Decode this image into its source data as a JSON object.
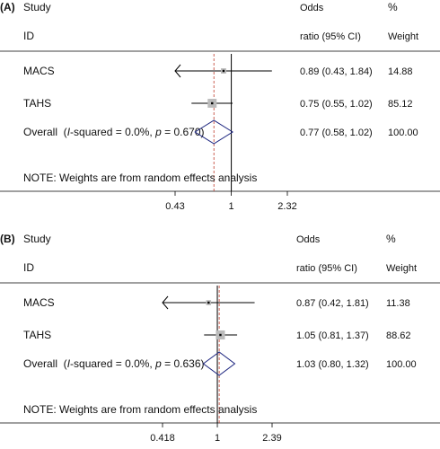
{
  "chart_data": [
    {
      "type": "forest",
      "panel_label": "(A)",
      "header": {
        "study": "Study",
        "id": "ID",
        "or_line1": "Odds",
        "or_line2": "ratio (95% CI)",
        "w_line1": "%",
        "w_line2": "Weight"
      },
      "studies": [
        {
          "name": "MACS",
          "or": 0.89,
          "lo": 0.43,
          "hi": 1.84,
          "ci_text": "0.89 (0.43, 1.84)",
          "weight": 14.88,
          "weight_text": "14.88",
          "lo_clipped": true
        },
        {
          "name": "TAHS",
          "or": 0.75,
          "lo": 0.55,
          "hi": 1.02,
          "ci_text": "0.75 (0.55, 1.02)",
          "weight": 85.12,
          "weight_text": "85.12",
          "lo_clipped": false
        }
      ],
      "overall": {
        "label_pre": "Overall  (",
        "label_i": "I",
        "label_mid": "-squared = 0.0%, ",
        "label_p": "p",
        "label_post": " = 0.670)",
        "or": 0.77,
        "lo": 0.58,
        "hi": 1.02,
        "ci_text": "0.77 (0.58, 1.02)",
        "weight_text": "100.00"
      },
      "note": "NOTE: Weights are from random effects analysis",
      "ticks": [
        {
          "value": 0.43,
          "label": "0.43"
        },
        {
          "value": 1,
          "label": "1"
        },
        {
          "value": 2.32,
          "label": "2.32"
        }
      ],
      "xlim": [
        0.43,
        2.32
      ],
      "log_scale": true
    },
    {
      "type": "forest",
      "panel_label": "(B)",
      "header": {
        "study": "Study",
        "id": "ID",
        "or_line1": "Odds",
        "or_line2": "ratio (95% CI)",
        "w_line1": "%",
        "w_line2": "Weight"
      },
      "studies": [
        {
          "name": "MACS",
          "or": 0.87,
          "lo": 0.42,
          "hi": 1.81,
          "ci_text": "0.87 (0.42, 1.81)",
          "weight": 11.38,
          "weight_text": "11.38",
          "lo_clipped": true
        },
        {
          "name": "TAHS",
          "or": 1.05,
          "lo": 0.81,
          "hi": 1.37,
          "ci_text": "1.05 (0.81, 1.37)",
          "weight": 88.62,
          "weight_text": "88.62",
          "lo_clipped": false
        }
      ],
      "overall": {
        "label_pre": "Overall  (",
        "label_i": "I",
        "label_mid": "-squared = 0.0%, ",
        "label_p": "p",
        "label_post": " = 0.636)",
        "or": 1.03,
        "lo": 0.8,
        "hi": 1.32,
        "ci_text": "1.03 (0.80, 1.32)",
        "weight_text": "100.00"
      },
      "note": "NOTE: Weights are from random effects analysis",
      "ticks": [
        {
          "value": 0.418,
          "label": "0.418"
        },
        {
          "value": 1,
          "label": "1"
        },
        {
          "value": 2.39,
          "label": "2.39"
        }
      ],
      "xlim": [
        0.418,
        2.39
      ],
      "log_scale": true
    }
  ]
}
